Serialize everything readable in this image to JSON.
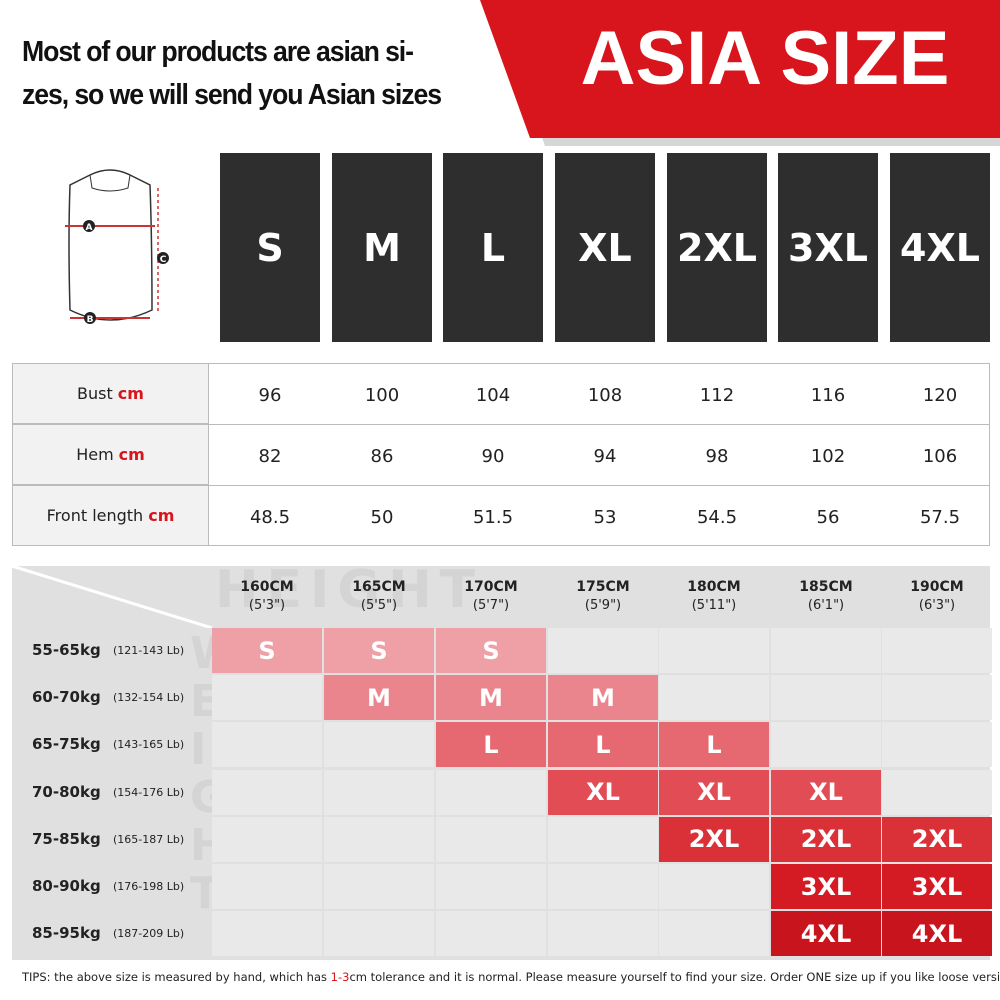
{
  "header": {
    "lines": [
      "Most of our products are asian si-",
      "zes, so we will send you Asian sizes"
    ],
    "badge": "ASIA SIZE"
  },
  "sizes": [
    "S",
    "M",
    "L",
    "XL",
    "2XL",
    "3XL",
    "4XL"
  ],
  "diagram": {
    "labels": [
      "A",
      "B",
      "C"
    ]
  },
  "measurements": {
    "unit": "cm",
    "rows": [
      {
        "label": "Bust",
        "values": [
          "96",
          "100",
          "104",
          "108",
          "112",
          "116",
          "120"
        ]
      },
      {
        "label": "Hem",
        "values": [
          "82",
          "86",
          "90",
          "94",
          "98",
          "102",
          "106"
        ]
      },
      {
        "label": "Front length",
        "values": [
          "48.5",
          "50",
          "51.5",
          "53",
          "54.5",
          "56",
          "57.5"
        ]
      }
    ]
  },
  "fit": {
    "watermark_height": "HEIGHT",
    "watermark_weight": "WEIGHT",
    "heights": [
      {
        "cm": "160CM",
        "ft": "(5'3\")"
      },
      {
        "cm": "165CM",
        "ft": "(5'5\")"
      },
      {
        "cm": "170CM",
        "ft": "(5'7\")"
      },
      {
        "cm": "175CM",
        "ft": "(5'9\")"
      },
      {
        "cm": "180CM",
        "ft": "(5'11\")"
      },
      {
        "cm": "185CM",
        "ft": "(6'1\")"
      },
      {
        "cm": "190CM",
        "ft": "(6'3\")"
      }
    ],
    "rows": [
      {
        "kg": "55-65kg",
        "lb": "(121-143 Lb)",
        "color": "#eea0a6",
        "cells": [
          "S",
          "S",
          "S",
          null,
          null,
          null,
          null
        ]
      },
      {
        "kg": "60-70kg",
        "lb": "(132-154 Lb)",
        "color": "#ea858d",
        "cells": [
          null,
          "M",
          "M",
          "M",
          null,
          null,
          null
        ]
      },
      {
        "kg": "65-75kg",
        "lb": "(143-165 Lb)",
        "color": "#e66870",
        "cells": [
          null,
          null,
          "L",
          "L",
          "L",
          null,
          null
        ]
      },
      {
        "kg": "70-80kg",
        "lb": "(154-176 Lb)",
        "color": "#e14c55",
        "cells": [
          null,
          null,
          null,
          "XL",
          "XL",
          "XL",
          null
        ]
      },
      {
        "kg": "75-85kg",
        "lb": "(165-187 Lb)",
        "color": "#da3038",
        "cells": [
          null,
          null,
          null,
          null,
          "2XL",
          "2XL",
          "2XL"
        ]
      },
      {
        "kg": "80-90kg",
        "lb": "(176-198 Lb)",
        "color": "#d41a22",
        "cells": [
          null,
          null,
          null,
          null,
          null,
          "3XL",
          "3XL"
        ]
      },
      {
        "kg": "85-95kg",
        "lb": "(187-209 Lb)",
        "color": "#c8141c",
        "cells": [
          null,
          null,
          null,
          null,
          null,
          "4XL",
          "4XL"
        ]
      }
    ]
  },
  "tips": {
    "before": "TIPS:  the above size is measured by hand, which has ",
    "highlight": "1-3",
    "after": "cm tolerance and it is normal. Please measure yourself to find your size. Order ONE size up if you like loose version."
  }
}
